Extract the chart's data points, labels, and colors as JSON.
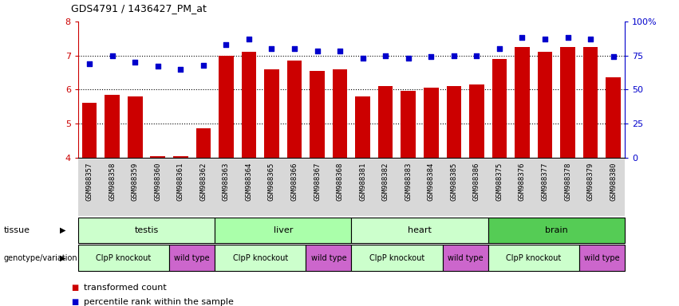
{
  "title": "GDS4791 / 1436427_PM_at",
  "samples": [
    "GSM988357",
    "GSM988358",
    "GSM988359",
    "GSM988360",
    "GSM988361",
    "GSM988362",
    "GSM988363",
    "GSM988364",
    "GSM988365",
    "GSM988366",
    "GSM988367",
    "GSM988368",
    "GSM988381",
    "GSM988382",
    "GSM988383",
    "GSM988384",
    "GSM988385",
    "GSM988386",
    "GSM988375",
    "GSM988376",
    "GSM988377",
    "GSM988378",
    "GSM988379",
    "GSM988380"
  ],
  "bar_values": [
    5.6,
    5.85,
    5.8,
    4.05,
    4.05,
    4.85,
    7.0,
    7.1,
    6.6,
    6.85,
    6.55,
    6.6,
    5.8,
    6.1,
    5.95,
    6.05,
    6.1,
    6.15,
    6.9,
    7.25,
    7.1,
    7.25,
    7.25,
    6.35
  ],
  "percentile_values": [
    69,
    75,
    70,
    67,
    65,
    68,
    83,
    87,
    80,
    80,
    78,
    78,
    73,
    75,
    73,
    74,
    75,
    75,
    80,
    88,
    87,
    88,
    87,
    74
  ],
  "bar_color": "#cc0000",
  "dot_color": "#0000cc",
  "ylim_left": [
    4,
    8
  ],
  "ylim_right": [
    0,
    100
  ],
  "yticks_left": [
    4,
    5,
    6,
    7,
    8
  ],
  "yticks_right": [
    0,
    25,
    50,
    75,
    100
  ],
  "tissue_groups": [
    {
      "label": "testis",
      "start": 0,
      "end": 6,
      "color": "#ccffcc"
    },
    {
      "label": "liver",
      "start": 6,
      "end": 12,
      "color": "#aaffaa"
    },
    {
      "label": "heart",
      "start": 12,
      "end": 18,
      "color": "#ccffcc"
    },
    {
      "label": "brain",
      "start": 18,
      "end": 24,
      "color": "#55cc55"
    }
  ],
  "genotype_groups": [
    {
      "label": "ClpP knockout",
      "start": 0,
      "end": 4,
      "color": "#ccffcc"
    },
    {
      "label": "wild type",
      "start": 4,
      "end": 6,
      "color": "#cc66cc"
    },
    {
      "label": "ClpP knockout",
      "start": 6,
      "end": 10,
      "color": "#ccffcc"
    },
    {
      "label": "wild type",
      "start": 10,
      "end": 12,
      "color": "#cc66cc"
    },
    {
      "label": "ClpP knockout",
      "start": 12,
      "end": 16,
      "color": "#ccffcc"
    },
    {
      "label": "wild type",
      "start": 16,
      "end": 18,
      "color": "#cc66cc"
    },
    {
      "label": "ClpP knockout",
      "start": 18,
      "end": 22,
      "color": "#ccffcc"
    },
    {
      "label": "wild type",
      "start": 22,
      "end": 24,
      "color": "#cc66cc"
    }
  ],
  "legend_items": [
    {
      "label": "transformed count",
      "color": "#cc0000"
    },
    {
      "label": "percentile rank within the sample",
      "color": "#0000cc"
    }
  ],
  "xticklabel_fontsize": 6.5,
  "bg_color": "#d8d8d8"
}
